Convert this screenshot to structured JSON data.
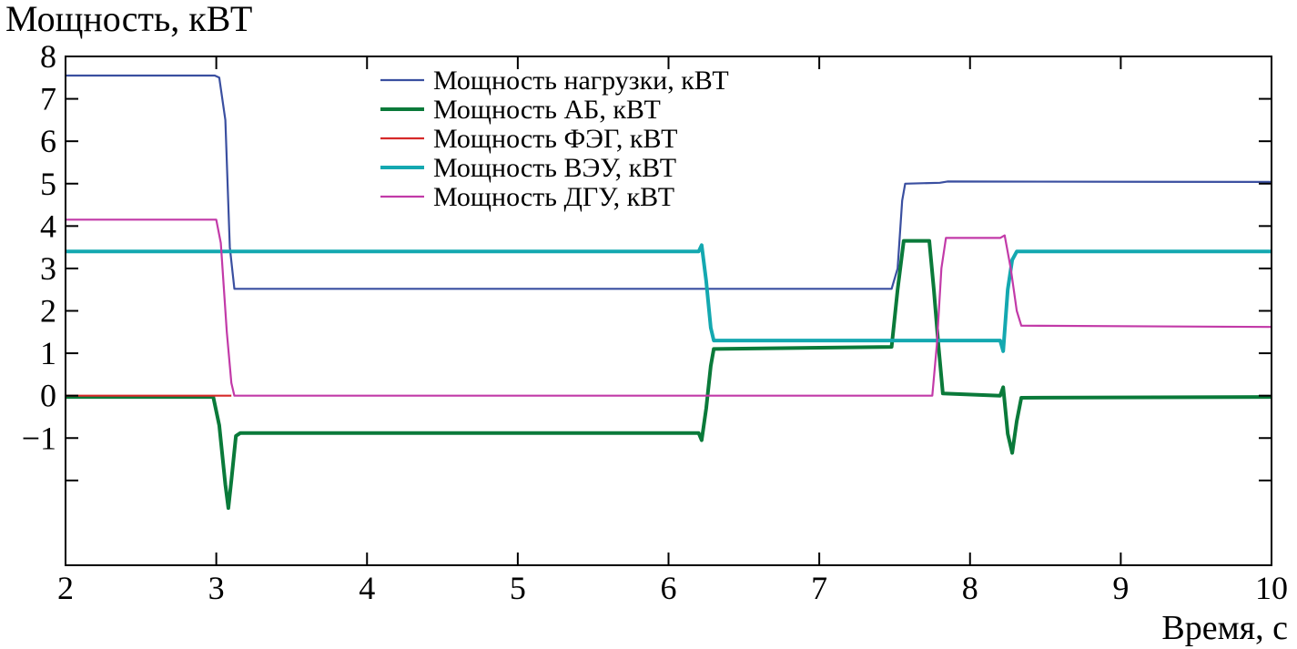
{
  "chart_data": {
    "type": "line",
    "title": "",
    "ylabel": "Мощность, кВТ",
    "xlabel": "Время, с",
    "xlim": [
      2,
      10
    ],
    "ylim": [
      -4,
      8
    ],
    "x_ticks": [
      2,
      3,
      4,
      5,
      6,
      7,
      8,
      9,
      10
    ],
    "y_ticks": [
      -2,
      -1,
      0,
      1,
      2,
      3,
      4,
      5,
      6,
      7,
      8
    ],
    "y_tick_labels": [
      "",
      "−1",
      "0",
      "1",
      "2",
      "3",
      "4",
      "5",
      "6",
      "7",
      "8"
    ],
    "grid": false,
    "legend_position": "top-center",
    "series": [
      {
        "name": "Мощность нагрузки, кВТ",
        "color": "#3a4fa0",
        "points": [
          [
            2.0,
            7.55
          ],
          [
            2.99,
            7.55
          ],
          [
            3.02,
            7.5
          ],
          [
            3.06,
            6.5
          ],
          [
            3.09,
            3.5
          ],
          [
            3.12,
            2.52
          ],
          [
            7.48,
            2.52
          ],
          [
            7.52,
            3.0
          ],
          [
            7.55,
            4.6
          ],
          [
            7.57,
            5.0
          ],
          [
            7.8,
            5.02
          ],
          [
            7.85,
            5.05
          ],
          [
            10.0,
            5.04
          ]
        ]
      },
      {
        "name": "Мощность АБ, кВТ",
        "color": "#0a7a3a",
        "points": [
          [
            2.0,
            -0.03
          ],
          [
            2.98,
            -0.03
          ],
          [
            3.02,
            -0.7
          ],
          [
            3.06,
            -2.1
          ],
          [
            3.08,
            -2.65
          ],
          [
            3.1,
            -2.0
          ],
          [
            3.13,
            -0.95
          ],
          [
            3.16,
            -0.88
          ],
          [
            6.2,
            -0.88
          ],
          [
            6.22,
            -1.05
          ],
          [
            6.25,
            -0.3
          ],
          [
            6.28,
            0.7
          ],
          [
            6.3,
            1.1
          ],
          [
            7.48,
            1.15
          ],
          [
            7.52,
            2.5
          ],
          [
            7.56,
            3.65
          ],
          [
            7.73,
            3.65
          ],
          [
            7.76,
            2.5
          ],
          [
            7.79,
            1.2
          ],
          [
            7.82,
            0.05
          ],
          [
            8.2,
            0.0
          ],
          [
            8.22,
            0.2
          ],
          [
            8.25,
            -0.9
          ],
          [
            8.28,
            -1.35
          ],
          [
            8.31,
            -0.6
          ],
          [
            8.34,
            -0.05
          ],
          [
            10.0,
            -0.03
          ]
        ]
      },
      {
        "name": "Мощность ФЭГ, кВТ",
        "color": "#d62a2a",
        "points": [
          [
            2.0,
            0.0
          ],
          [
            3.1,
            0.0
          ]
        ]
      },
      {
        "name": "Мощность ВЭУ, кВТ",
        "color": "#14a8b0",
        "points": [
          [
            2.0,
            3.4
          ],
          [
            6.2,
            3.4
          ],
          [
            6.22,
            3.55
          ],
          [
            6.25,
            2.7
          ],
          [
            6.28,
            1.6
          ],
          [
            6.3,
            1.3
          ],
          [
            8.2,
            1.3
          ],
          [
            8.22,
            1.05
          ],
          [
            8.25,
            2.5
          ],
          [
            8.28,
            3.2
          ],
          [
            8.31,
            3.4
          ],
          [
            10.0,
            3.4
          ]
        ]
      },
      {
        "name": "Мощность ДГУ, кВТ",
        "color": "#c23aa8",
        "points": [
          [
            2.0,
            4.15
          ],
          [
            3.0,
            4.15
          ],
          [
            3.03,
            3.6
          ],
          [
            3.07,
            1.5
          ],
          [
            3.1,
            0.3
          ],
          [
            3.12,
            0.0
          ],
          [
            7.75,
            0.0
          ],
          [
            7.78,
            1.2
          ],
          [
            7.81,
            3.0
          ],
          [
            7.84,
            3.72
          ],
          [
            8.2,
            3.72
          ],
          [
            8.23,
            3.78
          ],
          [
            8.27,
            3.0
          ],
          [
            8.31,
            2.0
          ],
          [
            8.34,
            1.65
          ],
          [
            10.0,
            1.62
          ]
        ]
      }
    ]
  }
}
